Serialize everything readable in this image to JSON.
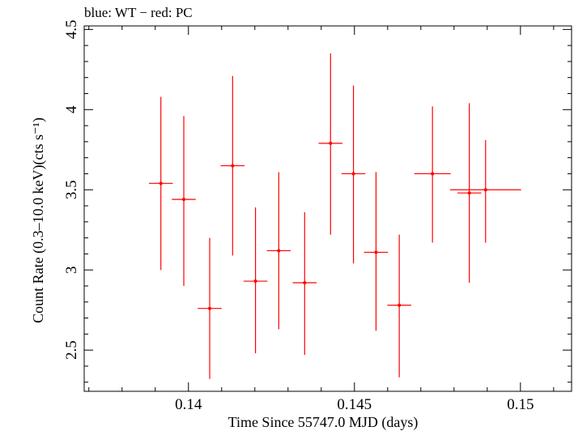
{
  "chart_data": {
    "type": "scatter",
    "title": "blue: WT − red: PC",
    "xlabel": "Time Since 55747.0 MJD (days)",
    "ylabel": "Count Rate (0.3–10.0 keV)(cts s⁻¹)",
    "xlim": [
      0.13686,
      0.15154
    ],
    "ylim": [
      2.243,
      4.522
    ],
    "x_ticks": [
      "0.14",
      "0.145",
      "0.15"
    ],
    "y_ticks": [
      "2.5",
      "3",
      "3.5",
      "4",
      "4.5"
    ],
    "grid": false,
    "colors": {
      "PC": "#ff0000",
      "WT": "#0000ff",
      "axes": "#000000"
    },
    "series": [
      {
        "name": "PC",
        "color": "#ff0000",
        "points": [
          {
            "x": 0.14846,
            "xerr": 0.00036,
            "y": 3.48,
            "ylo": 2.92,
            "yhi": 4.04
          },
          {
            "x": 0.13917,
            "xerr": 0.00036,
            "y": 3.54,
            "ylo": 3.0,
            "yhi": 4.08
          },
          {
            "x": 0.13986,
            "xerr": 0.00036,
            "y": 3.44,
            "ylo": 2.9,
            "yhi": 3.96
          },
          {
            "x": 0.14064,
            "xerr": 0.00036,
            "y": 2.76,
            "ylo": 2.32,
            "yhi": 3.2
          },
          {
            "x": 0.14133,
            "xerr": 0.00036,
            "y": 3.65,
            "ylo": 3.09,
            "yhi": 4.21
          },
          {
            "x": 0.14202,
            "xerr": 0.00036,
            "y": 2.93,
            "ylo": 2.48,
            "yhi": 3.39
          },
          {
            "x": 0.14272,
            "xerr": 0.00036,
            "y": 3.12,
            "ylo": 2.63,
            "yhi": 3.61
          },
          {
            "x": 0.1435,
            "xerr": 0.00036,
            "y": 2.92,
            "ylo": 2.47,
            "yhi": 3.36
          },
          {
            "x": 0.14428,
            "xerr": 0.00036,
            "y": 3.79,
            "ylo": 3.22,
            "yhi": 4.35
          },
          {
            "x": 0.14497,
            "xerr": 0.00036,
            "y": 3.6,
            "ylo": 3.04,
            "yhi": 4.15
          },
          {
            "x": 0.14565,
            "xerr": 0.00036,
            "y": 3.11,
            "ylo": 2.62,
            "yhi": 3.61
          },
          {
            "x": 0.14635,
            "xerr": 0.00036,
            "y": 2.78,
            "ylo": 2.33,
            "yhi": 3.22
          },
          {
            "x": 0.14735,
            "xerr": 0.00055,
            "y": 3.6,
            "ylo": 3.17,
            "yhi": 4.02
          },
          {
            "x": 0.14895,
            "xerr": 0.00107,
            "y": 3.5,
            "ylo": 3.17,
            "yhi": 3.81
          }
        ]
      }
    ]
  }
}
